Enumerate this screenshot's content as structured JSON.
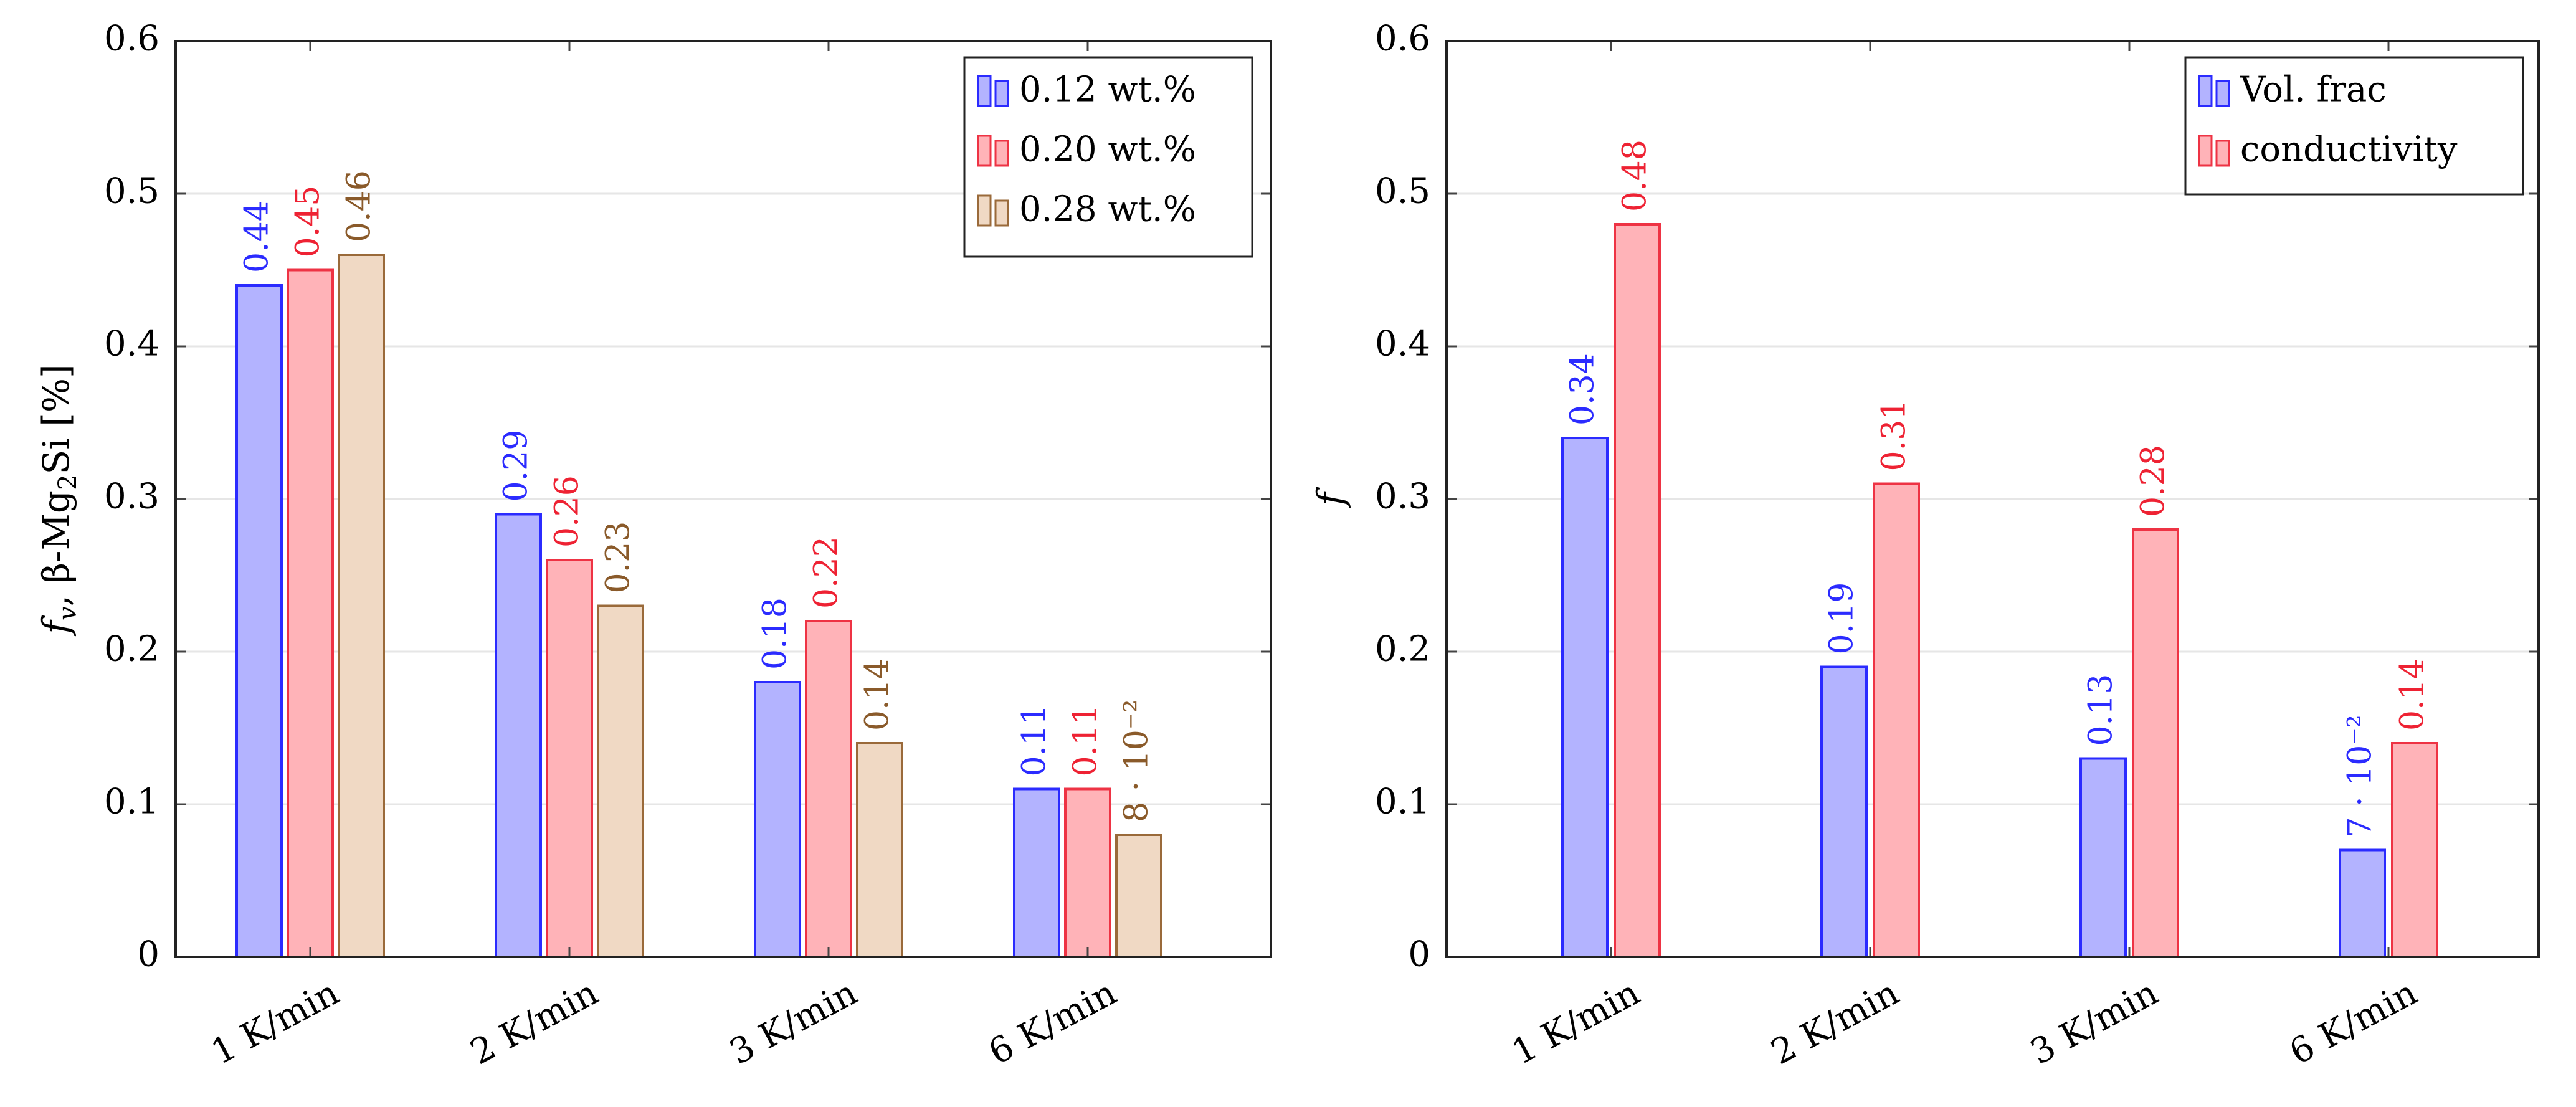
{
  "chart_data": [
    {
      "type": "bar",
      "categories": [
        "1 K/min",
        "2 K/min",
        "3 K/min",
        "6 K/min"
      ],
      "series": [
        {
          "name": "0.12 wt.%",
          "values": [
            0.44,
            0.29,
            0.18,
            0.11
          ],
          "labels": [
            "0.44",
            "0.29",
            "0.18",
            "0.11"
          ],
          "fill": "#b3b3ff",
          "stroke": "#2b2bff",
          "label_color": "#2b2bff"
        },
        {
          "name": "0.20 wt.%",
          "values": [
            0.45,
            0.26,
            0.22,
            0.11
          ],
          "labels": [
            "0.45",
            "0.26",
            "0.22",
            "0.11"
          ],
          "fill": "#ffb3b8",
          "stroke": "#ee3344",
          "label_color": "#ee2233"
        },
        {
          "name": "0.28 wt.%",
          "values": [
            0.46,
            0.23,
            0.14,
            0.08
          ],
          "labels": [
            "0.46",
            "0.23",
            "0.14",
            "8 · 10⁻²"
          ],
          "fill": "#f0d9c4",
          "stroke": "#9a6a3a",
          "label_color": "#8a5a2a"
        }
      ],
      "ylabel": "f_v β-Mg₂Si [%]",
      "ylabel_parts": {
        "f": "f",
        "sub_v": "v",
        "rest": ", β-Mg",
        "sub_2": "2",
        "tail": "Si [%]"
      },
      "xlabel": "",
      "ylim": [
        0,
        0.6
      ],
      "yticks": [
        "0",
        "0.1",
        "0.2",
        "0.3",
        "0.4",
        "0.5",
        "0.6"
      ],
      "grid": true,
      "legend_position": "top-right"
    },
    {
      "type": "bar",
      "categories": [
        "1 K/min",
        "2 K/min",
        "3 K/min",
        "6 K/min"
      ],
      "series": [
        {
          "name": "Vol. frac",
          "values": [
            0.34,
            0.19,
            0.13,
            0.07
          ],
          "labels": [
            "0.34",
            "0.19",
            "0.13",
            "7 · 10⁻²"
          ],
          "fill": "#b3b3ff",
          "stroke": "#2b2bff",
          "label_color": "#2b2bff"
        },
        {
          "name": "conductivity",
          "values": [
            0.48,
            0.31,
            0.28,
            0.14
          ],
          "labels": [
            "0.48",
            "0.31",
            "0.28",
            "0.14"
          ],
          "fill": "#ffb3b8",
          "stroke": "#ee3344",
          "label_color": "#ee2233"
        }
      ],
      "ylabel": "f",
      "xlabel": "",
      "ylim": [
        0,
        0.6
      ],
      "yticks": [
        "0",
        "0.1",
        "0.2",
        "0.3",
        "0.4",
        "0.5",
        "0.6"
      ],
      "grid": true,
      "legend_position": "top-right"
    }
  ]
}
